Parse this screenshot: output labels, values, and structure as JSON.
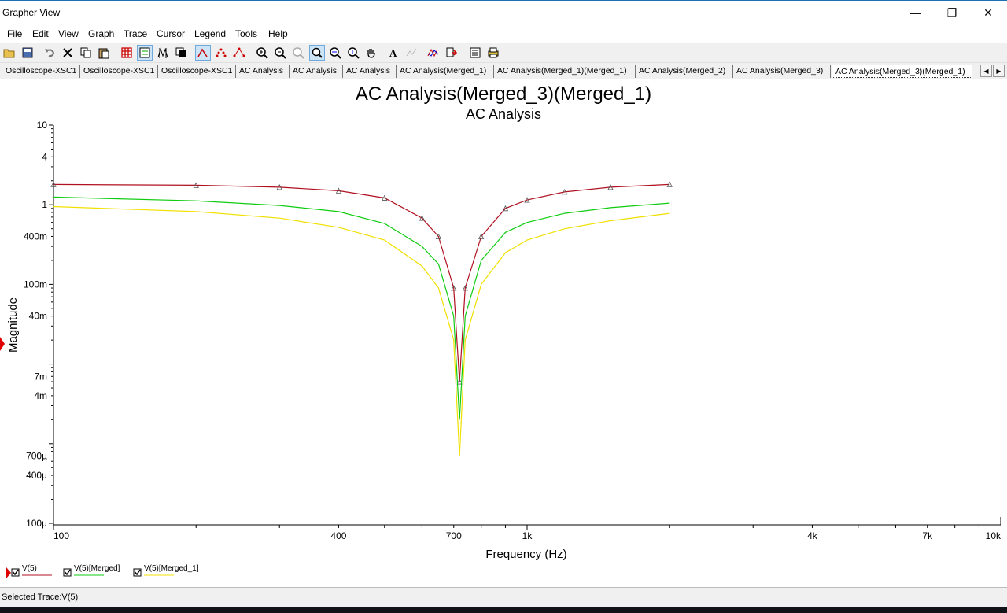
{
  "window": {
    "title": "Grapher View",
    "minimize": "—",
    "restore": "❐",
    "close": "✕"
  },
  "menu": [
    "File",
    "Edit",
    "View",
    "Graph",
    "Trace",
    "Cursor",
    "Legend",
    "Tools",
    "Help"
  ],
  "tabs": [
    "Oscilloscope-XSC1",
    "Oscilloscope-XSC1",
    "Oscilloscope-XSC1",
    "AC Analysis",
    "AC Analysis",
    "AC Analysis",
    "AC Analysis(Merged_1)",
    "AC Analysis(Merged_1)(Merged_1)",
    "AC Analysis(Merged_2)",
    "AC Analysis(Merged_3)",
    "AC Analysis(Merged_3)(Merged_1)"
  ],
  "active_tab_index": 10,
  "tab_nav": {
    "prev": "◀",
    "next": "▶"
  },
  "graph": {
    "title": "AC Analysis(Merged_3)(Merged_1)",
    "subtitle": "AC Analysis",
    "ylabel": "Magnitude",
    "xlabel": "Frequency (Hz)",
    "yticks": [
      "10",
      "4",
      "1",
      "400m",
      "100m",
      "40m",
      "7m",
      "4m",
      "700µ",
      "400µ",
      "100µ"
    ],
    "xticks": [
      "100",
      "400",
      "700",
      "1k",
      "4k",
      "7k",
      "10k"
    ]
  },
  "chart_data": {
    "type": "line",
    "title": "AC Analysis(Merged_3)(Merged_1)",
    "subtitle": "AC Analysis",
    "xlabel": "Frequency (Hz)",
    "ylabel": "Magnitude",
    "xscale": "log",
    "yscale": "log",
    "xlim": [
      100,
      10000
    ],
    "ylim": [
      0.0001,
      10
    ],
    "grid": false,
    "legend_position": "bottom-left",
    "notch_frequency": 720,
    "x": [
      100,
      200,
      300,
      400,
      500,
      600,
      650,
      700,
      720,
      740,
      800,
      900,
      1000,
      1200,
      1500,
      2000
    ],
    "series": [
      {
        "name": "V(5)",
        "color": "#b01020",
        "marker": "triangle",
        "values": [
          1.8,
          1.76,
          1.66,
          1.5,
          1.22,
          0.68,
          0.4,
          0.09,
          0.006,
          0.09,
          0.4,
          0.9,
          1.15,
          1.45,
          1.66,
          1.8
        ]
      },
      {
        "name": "V(5)[Merged]",
        "color": "#10cc10",
        "values": [
          1.25,
          1.12,
          0.98,
          0.82,
          0.58,
          0.3,
          0.18,
          0.04,
          0.002,
          0.04,
          0.2,
          0.45,
          0.6,
          0.78,
          0.92,
          1.05
        ]
      },
      {
        "name": "V(5)[Merged_1]",
        "color": "#f0e000",
        "values": [
          0.95,
          0.82,
          0.68,
          0.52,
          0.36,
          0.17,
          0.09,
          0.02,
          0.0007,
          0.02,
          0.1,
          0.25,
          0.36,
          0.5,
          0.63,
          0.78
        ]
      }
    ]
  },
  "legend": [
    {
      "label": "V(5)",
      "color": "#b01020",
      "checked": true
    },
    {
      "label": "V(5)[Merged]",
      "color": "#10cc10",
      "checked": true
    },
    {
      "label": "V(5)[Merged_1]",
      "color": "#f0e000",
      "checked": true
    }
  ],
  "status": {
    "selected_trace": "Selected Trace:V(5)"
  },
  "toolbar_icons": [
    "open-icon",
    "save-icon",
    "undo-icon",
    "delete-icon",
    "copy-icon",
    "paste-icon",
    "grid-icon",
    "legend-icon",
    "cursors-icon",
    "reverse-colors-icon",
    "show-line-icon",
    "show-points-icon",
    "show-line-points-icon",
    "zoom-in-icon",
    "zoom-out-icon",
    "zoom-full-icon",
    "zoom-area-icon",
    "zoom-x-icon",
    "zoom-y-icon",
    "pan-icon",
    "text-icon",
    "select-marks-icon",
    "overlay-traces-icon",
    "export-icon",
    "properties-icon",
    "print-icon"
  ]
}
